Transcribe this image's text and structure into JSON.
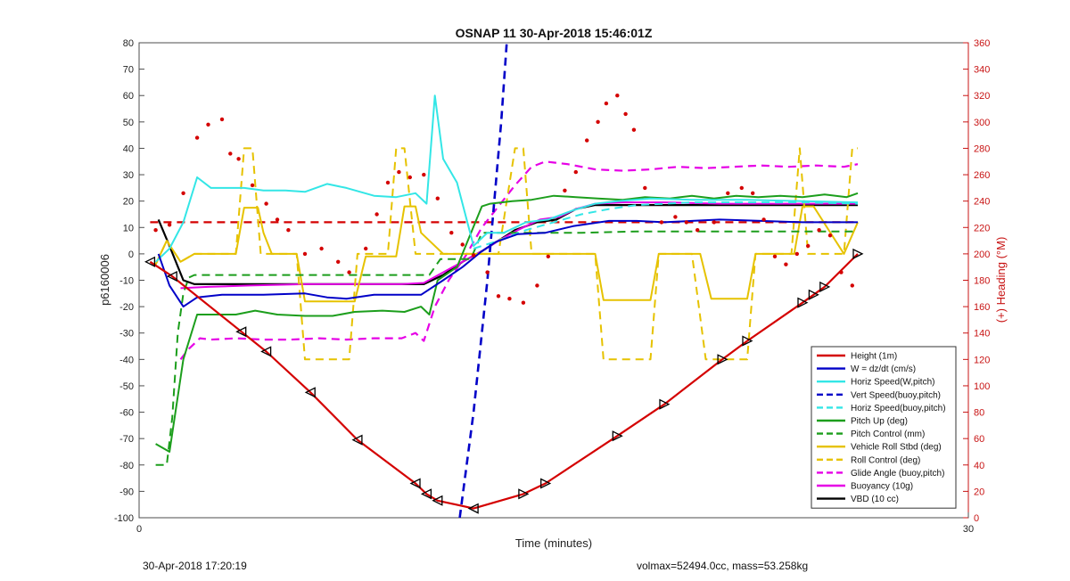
{
  "footer": {
    "timestamp": "30-Apr-2018 17:20:19",
    "vol_mass": "volmax=52494.0cc, mass=53.258kg"
  },
  "chart_data": {
    "type": "line",
    "title": "OSNAP 11 30-Apr-2018 15:46:01Z",
    "xlabel": "Time (minutes)",
    "ylabel": "p6160006",
    "y2label": "(+) Heading (°M)",
    "xlim": [
      0,
      30
    ],
    "ylim": [
      -100,
      80
    ],
    "y2lim": [
      0,
      360
    ],
    "xticks": [
      "0",
      "30"
    ],
    "yticks": [
      -100,
      -90,
      -80,
      -70,
      -60,
      -50,
      -40,
      -30,
      -20,
      -10,
      0,
      10,
      20,
      30,
      40,
      50,
      60,
      70,
      80
    ],
    "y2ticks": [
      0,
      20,
      40,
      60,
      80,
      100,
      120,
      140,
      160,
      180,
      200,
      220,
      240,
      260,
      280,
      300,
      320,
      340,
      360
    ],
    "grid": false,
    "legend_position": "bottom-right",
    "colors": {
      "red": "#d40000",
      "blue": "#0000c8",
      "cyan": "#33e6e6",
      "green": "#1c9e1c",
      "yellow": "#e6c200",
      "magenta": "#e600e6",
      "black": "#000000",
      "heading_axis": "#c81414"
    },
    "series": [
      {
        "name": "Height (1m)",
        "color": "#d40000",
        "style": "solid",
        "width": 2.2,
        "markers": "triangles",
        "x": [
          0.4,
          1.2,
          3.7,
          4.6,
          6.2,
          7.9,
          10.0,
          10.4,
          10.8,
          12.1,
          13.9,
          14.7,
          17.3,
          19.0,
          21.1,
          22.0,
          24.0,
          24.4,
          24.8,
          26.0
        ],
        "y": [
          -3,
          -8.5,
          -29.5,
          -37,
          -52.5,
          -70.5,
          -87,
          -91,
          -93.5,
          -96.5,
          -91,
          -87,
          -69,
          -57,
          -40,
          -33,
          -18.5,
          -15.5,
          -12.5,
          0
        ]
      },
      {
        "name": "W = dz/dt (cm/s)",
        "color": "#0000c8",
        "style": "solid",
        "width": 2,
        "x": [
          0.7,
          1.1,
          1.6,
          2.1,
          3.0,
          4.5,
          6.0,
          6.8,
          7.5,
          8.5,
          9.5,
          10.2,
          11.0,
          11.7,
          12.4,
          12.9,
          13.7,
          14.7,
          15.7,
          17.0,
          18.0,
          19.0,
          20.0,
          21.0,
          22.5,
          24.0,
          25.0,
          26.0
        ],
        "y": [
          0,
          -12,
          -20,
          -16.5,
          -15.5,
          -15.5,
          -15,
          -16.5,
          -17,
          -15.5,
          -15.5,
          -15.5,
          -10,
          -5,
          1,
          4.5,
          7.5,
          8,
          10.5,
          12.5,
          12.5,
          12,
          12.5,
          13,
          12.5,
          12,
          12,
          12
        ]
      },
      {
        "name": "Horiz Speed(W,pitch)",
        "color": "#33e6e6",
        "style": "solid",
        "width": 2,
        "x": [
          0.6,
          1.1,
          1.6,
          2.1,
          2.6,
          3.2,
          3.8,
          4.5,
          5.3,
          6.0,
          6.8,
          7.5,
          8.5,
          9.3,
          10.0,
          10.4,
          10.7,
          11.0,
          11.5,
          12.1,
          12.6,
          13.2,
          14.0,
          14.8,
          15.7,
          16.5,
          17.3,
          18.5,
          20.0,
          22.0,
          24.0,
          26.0
        ],
        "y": [
          -3,
          2,
          12,
          29,
          25,
          25,
          25,
          24,
          24,
          23.5,
          26.5,
          25,
          22,
          21.5,
          23,
          19,
          60,
          36,
          27,
          3,
          8,
          8,
          12,
          13,
          16.5,
          19,
          20,
          21,
          20.5,
          20.5,
          20,
          19.5
        ]
      },
      {
        "name": "Vert Speed(buoy,pitch)",
        "color": "#0000c8",
        "style": "dashed",
        "width": 2.6,
        "x": [
          11.6,
          12.1,
          12.6,
          13.1,
          13.3
        ],
        "y": [
          -100,
          -60,
          -10,
          50,
          80
        ]
      },
      {
        "name": "Horiz Speed(buoy,pitch)",
        "color": "#33e6e6",
        "style": "dashed",
        "width": 2,
        "x": [
          12.1,
          13.0,
          14.0,
          15.0,
          16.0,
          17.0,
          18.0,
          19.0,
          20.0,
          22.0,
          24.0,
          26.0
        ],
        "y": [
          2,
          5,
          9,
          12,
          15,
          17,
          18.5,
          19,
          19.5,
          19.5,
          19.5,
          19
        ]
      },
      {
        "name": "Pitch Up (deg)",
        "color": "#1c9e1c",
        "style": "solid",
        "width": 2,
        "x": [
          0.6,
          1.1,
          1.6,
          2.1,
          2.6,
          3.5,
          4.2,
          5.0,
          6.0,
          7.0,
          7.8,
          8.8,
          9.6,
          10.2,
          10.5,
          10.8,
          11.5,
          12.4,
          12.7,
          13.5,
          14.2,
          15.0,
          15.8,
          16.6,
          17.5,
          18.3,
          19.2,
          20.0,
          20.8,
          21.6,
          22.4,
          23.2,
          24.0,
          24.8,
          25.6,
          26.0
        ],
        "y": [
          -72,
          -75,
          -40,
          -23,
          -23,
          -23,
          -21.5,
          -23,
          -23.5,
          -23.5,
          -22,
          -21.5,
          -22,
          -20,
          -23,
          -10,
          -5,
          18,
          19,
          20,
          20.5,
          22,
          21.5,
          21,
          20.5,
          21.5,
          21,
          22,
          21,
          22,
          21.5,
          22,
          21.5,
          22.5,
          21.5,
          23
        ]
      },
      {
        "name": "Pitch Control (mm)",
        "color": "#1c9e1c",
        "style": "dashed",
        "width": 2,
        "x": [
          0.6,
          1.0,
          1.2,
          1.4,
          1.6,
          1.8,
          2.0,
          3.5,
          5.0,
          7.0,
          9.0,
          10.5,
          10.9,
          11.5,
          12.0,
          12.4,
          12.8,
          14.0,
          16.0,
          18.0,
          20.0,
          22.0,
          24.0,
          26.0
        ],
        "y": [
          -80,
          -80,
          -62,
          -30,
          -15,
          -9,
          -8,
          -8,
          -8,
          -8,
          -8,
          -8,
          -2,
          -2,
          -2,
          8,
          8,
          8,
          8,
          8.5,
          8.5,
          8.5,
          8.5,
          8.5
        ]
      },
      {
        "name": "Vehicle Roll Stbd (deg)",
        "color": "#e6c200",
        "style": "solid",
        "width": 2,
        "x": [
          0.6,
          1.0,
          1.5,
          2.0,
          3.5,
          3.8,
          4.3,
          4.5,
          4.8,
          5.7,
          6.0,
          6.4,
          7.8,
          8.2,
          9.3,
          9.6,
          10.0,
          10.2,
          11.0,
          12.0,
          13.0,
          14.0,
          15.0,
          15.4,
          16.5,
          16.8,
          17.3,
          18.5,
          18.8,
          20.0,
          20.3,
          20.7,
          22.0,
          22.3,
          23.7,
          24.0,
          24.4,
          25.5,
          26.0
        ],
        "y": [
          -4,
          5,
          -3,
          0,
          0,
          17.5,
          17.5,
          8,
          0,
          0,
          -18,
          -18,
          -18,
          -1,
          -1,
          18,
          18,
          8,
          0,
          0,
          0,
          0,
          0,
          0,
          0,
          -17.5,
          -17.5,
          -17.5,
          0,
          0,
          0,
          -17,
          -17,
          0,
          0,
          18,
          18,
          0,
          12
        ]
      },
      {
        "name": "Roll Control (deg)",
        "color": "#e6c200",
        "style": "dashed",
        "width": 2,
        "x": [
          0.6,
          1.0,
          1.5,
          2.0,
          3.5,
          3.8,
          4.1,
          4.4,
          4.7,
          5.7,
          6.0,
          6.3,
          7.6,
          7.9,
          9.0,
          9.3,
          9.6,
          10.0,
          10.3,
          11.0,
          12.0,
          13.0,
          13.6,
          13.9,
          14.2,
          14.7,
          16.5,
          16.8,
          17.4,
          18.5,
          18.8,
          20.0,
          20.5,
          20.8,
          22.0,
          22.3,
          23.6,
          23.9,
          24.2,
          25.5,
          25.8,
          26.0
        ],
        "y": [
          -4,
          5,
          -3,
          0,
          0,
          40,
          40,
          0,
          0,
          0,
          -40,
          -40,
          -40,
          0,
          0,
          40,
          40,
          0,
          0,
          0,
          0,
          0,
          40,
          40,
          0,
          0,
          0,
          -40,
          -40,
          -40,
          0,
          0,
          -40,
          -40,
          -40,
          0,
          0,
          40,
          0,
          0,
          40,
          40
        ]
      },
      {
        "name": "Glide Angle (buoy,pitch)",
        "color": "#e600e6",
        "style": "dashed",
        "width": 2.2,
        "x": [
          1.5,
          1.8,
          2.2,
          2.6,
          3.5,
          4.5,
          5.5,
          6.5,
          7.5,
          8.5,
          9.5,
          10.0,
          10.3,
          10.7,
          11.2,
          11.8,
          12.4,
          13.0,
          13.6,
          14.2,
          14.7,
          15.5,
          16.5,
          17.5,
          18.5,
          19.5,
          20.5,
          21.5,
          22.5,
          23.5,
          24.5,
          25.5,
          26.0
        ],
        "y": [
          -40,
          -36,
          -32,
          -32.5,
          -32,
          -32.5,
          -32.5,
          -32,
          -32.5,
          -32,
          -32,
          -30,
          -33,
          -20,
          -10,
          -1,
          10,
          18,
          26,
          33,
          35,
          34,
          32,
          31.5,
          32,
          33,
          32.5,
          33,
          33.5,
          33,
          33.5,
          33,
          34
        ]
      },
      {
        "name": "Buoyancy (10g)",
        "color": "#e600e6",
        "style": "solid",
        "width": 2,
        "x": [
          1.5,
          2.5,
          4.0,
          6.0,
          8.0,
          9.5,
          10.3,
          11.0,
          11.7,
          12.4,
          13.0,
          13.7,
          14.5,
          15.2,
          15.8,
          16.5,
          17.5,
          19.0,
          21.0,
          23.0,
          25.0,
          26.0
        ],
        "y": [
          -13,
          -12.5,
          -12,
          -11.5,
          -11.5,
          -11.5,
          -11,
          -7,
          -3,
          1,
          5,
          9,
          13,
          14,
          17,
          19,
          19.5,
          19.5,
          19,
          19,
          19,
          19
        ]
      },
      {
        "name": "VBD (10 cc)",
        "color": "#000000",
        "style": "solid",
        "width": 2.2,
        "x": [
          0.7,
          1.1,
          1.6,
          2.0,
          4.0,
          6.0,
          8.0,
          9.5,
          10.3,
          11.0,
          11.7,
          12.4,
          13.0,
          13.6,
          14.4,
          15.1,
          15.8,
          16.5,
          17.5,
          19.0,
          21.0,
          23.0,
          25.0,
          26.0
        ],
        "y": [
          13,
          3,
          -10,
          -11.5,
          -11.5,
          -11.5,
          -11.5,
          -11.5,
          -11.5,
          -8,
          -3,
          1,
          5,
          9,
          12,
          13,
          17,
          18.5,
          18.5,
          18.5,
          18.5,
          18.5,
          18.5,
          18.5
        ]
      },
      {
        "name": "Heading reference",
        "color": "#d40000",
        "style": "dashed",
        "width": 2.2,
        "axis": "right",
        "x": [
          0.4,
          26.0
        ],
        "y": [
          224,
          224
        ]
      }
    ],
    "heading_points": {
      "axis": "right",
      "color": "#d40000",
      "x": [
        0.6,
        1.1,
        1.6,
        2.1,
        2.5,
        3.0,
        3.3,
        3.6,
        4.1,
        4.6,
        5.0,
        5.4,
        6.0,
        6.6,
        7.2,
        7.6,
        8.2,
        8.6,
        9.0,
        9.4,
        9.8,
        10.3,
        10.8,
        11.3,
        11.7,
        12.1,
        12.6,
        13.0,
        13.4,
        13.9,
        14.4,
        14.8,
        15.4,
        15.8,
        16.2,
        16.6,
        16.9,
        17.3,
        17.6,
        17.9,
        18.3,
        18.9,
        19.4,
        19.8,
        20.2,
        20.8,
        21.3,
        21.8,
        22.2,
        22.6,
        23.0,
        23.4,
        23.8,
        24.2,
        24.6,
        25.0,
        25.4,
        25.8
      ],
      "y": [
        218,
        222,
        246,
        288,
        298,
        302,
        276,
        272,
        252,
        238,
        226,
        218,
        200,
        204,
        194,
        186,
        204,
        230,
        254,
        262,
        258,
        260,
        242,
        216,
        207,
        199,
        186,
        168,
        166,
        163,
        176,
        198,
        248,
        262,
        286,
        300,
        314,
        320,
        306,
        294,
        250,
        224,
        228,
        224,
        218,
        224,
        246,
        250,
        246,
        226,
        198,
        192,
        200,
        206,
        218,
        214,
        186,
        176
      ]
    },
    "legend": [
      "Height (1m)",
      "W = dz/dt (cm/s)",
      "Horiz Speed(W,pitch)",
      "Vert Speed(buoy,pitch)",
      "Horiz Speed(buoy,pitch)",
      "Pitch Up (deg)",
      "Pitch Control (mm)",
      "Vehicle Roll Stbd (deg)",
      "Roll Control (deg)",
      "Glide Angle (buoy,pitch)",
      "Buoyancy (10g)",
      "VBD (10 cc)"
    ]
  }
}
